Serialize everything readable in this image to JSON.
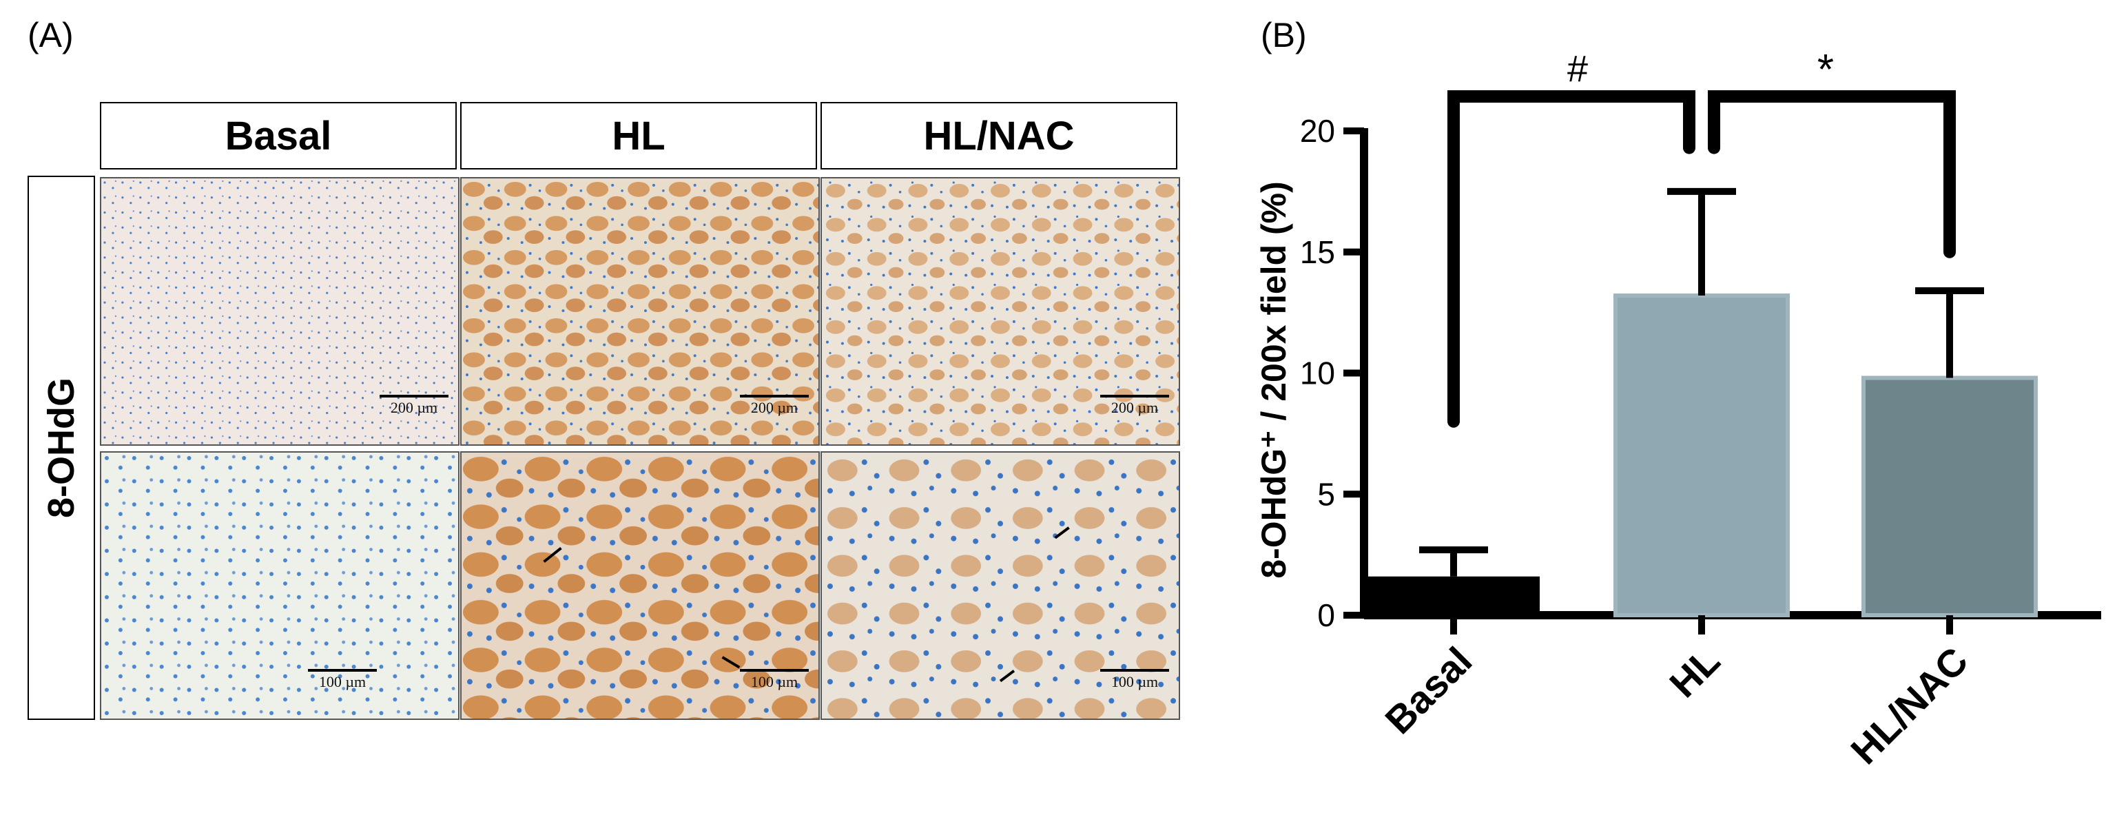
{
  "panel_a": {
    "label": "(A)",
    "columns": [
      "Basal",
      "HL",
      "HL/NAC"
    ],
    "row_label": "8-OHdG",
    "scale_top": "200 µm",
    "scale_bottom": "100 µm"
  },
  "panel_b": {
    "label": "(B)"
  },
  "colors": {
    "basal_bar": "#000000",
    "hl_bar": "#8fa8b1",
    "hlnac_bar": "#6e858c",
    "tissue_pale": "#efe6e1",
    "tissue_brown": "#d9a06a",
    "nuclei_blue": "#3e78c8"
  },
  "chart_data": {
    "type": "bar",
    "categories": [
      "Basal",
      "HL",
      "HL/NAC"
    ],
    "values": [
      1.6,
      13.2,
      9.8
    ],
    "errors": [
      1.1,
      4.3,
      3.6
    ],
    "ylabel": "8-OHdG⁺ / 200x field (%)",
    "ylim": [
      0,
      20
    ],
    "yticks": [
      "0",
      "5",
      "10",
      "15",
      "20"
    ],
    "significance": [
      {
        "from": "Basal",
        "to": "HL",
        "symbol": "#"
      },
      {
        "from": "HL",
        "to": "HL/NAC",
        "symbol": "*"
      }
    ]
  }
}
